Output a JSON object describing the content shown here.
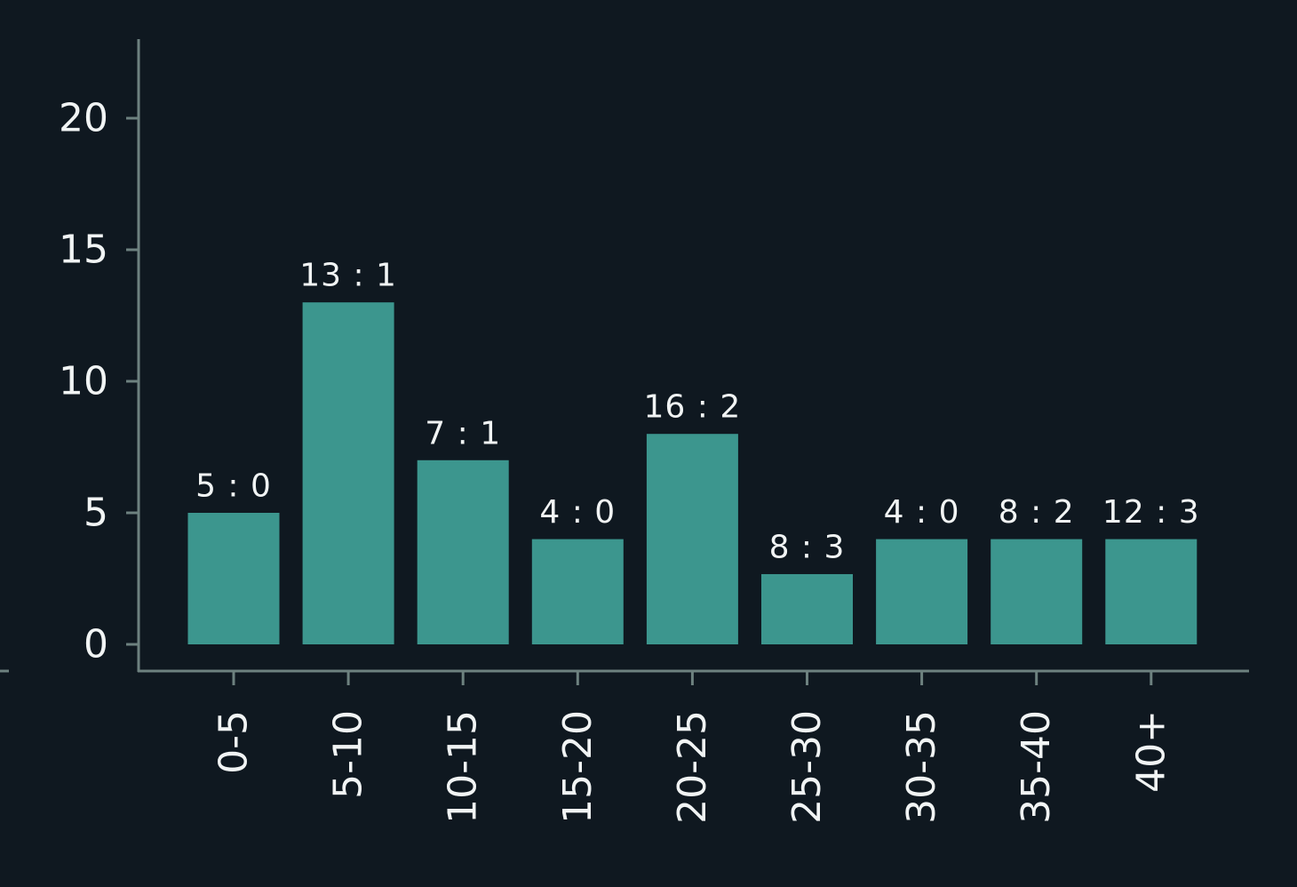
{
  "colors": {
    "background": "#0f1820",
    "bar": "#3c968e",
    "axis": "#6d817f",
    "text": "#f1f4f4"
  },
  "chart_data": {
    "type": "bar",
    "categories": [
      "0-5",
      "5-10",
      "10-15",
      "15-20",
      "20-25",
      "25-30",
      "30-35",
      "35-40",
      "40+"
    ],
    "values": [
      5,
      13,
      7,
      4,
      8,
      2.67,
      4,
      4,
      4
    ],
    "data_labels": [
      "5 : 0",
      "13 : 1",
      "7 : 1",
      "4 : 0",
      "16 : 2",
      "8 : 3",
      "4 : 0",
      "8 : 2",
      "12 : 3"
    ],
    "yticks": [
      0,
      5,
      10,
      15,
      20
    ],
    "ylim": [
      -1,
      23
    ],
    "title": "",
    "xlabel": "",
    "ylabel": "",
    "grid": false,
    "legend": "none"
  }
}
